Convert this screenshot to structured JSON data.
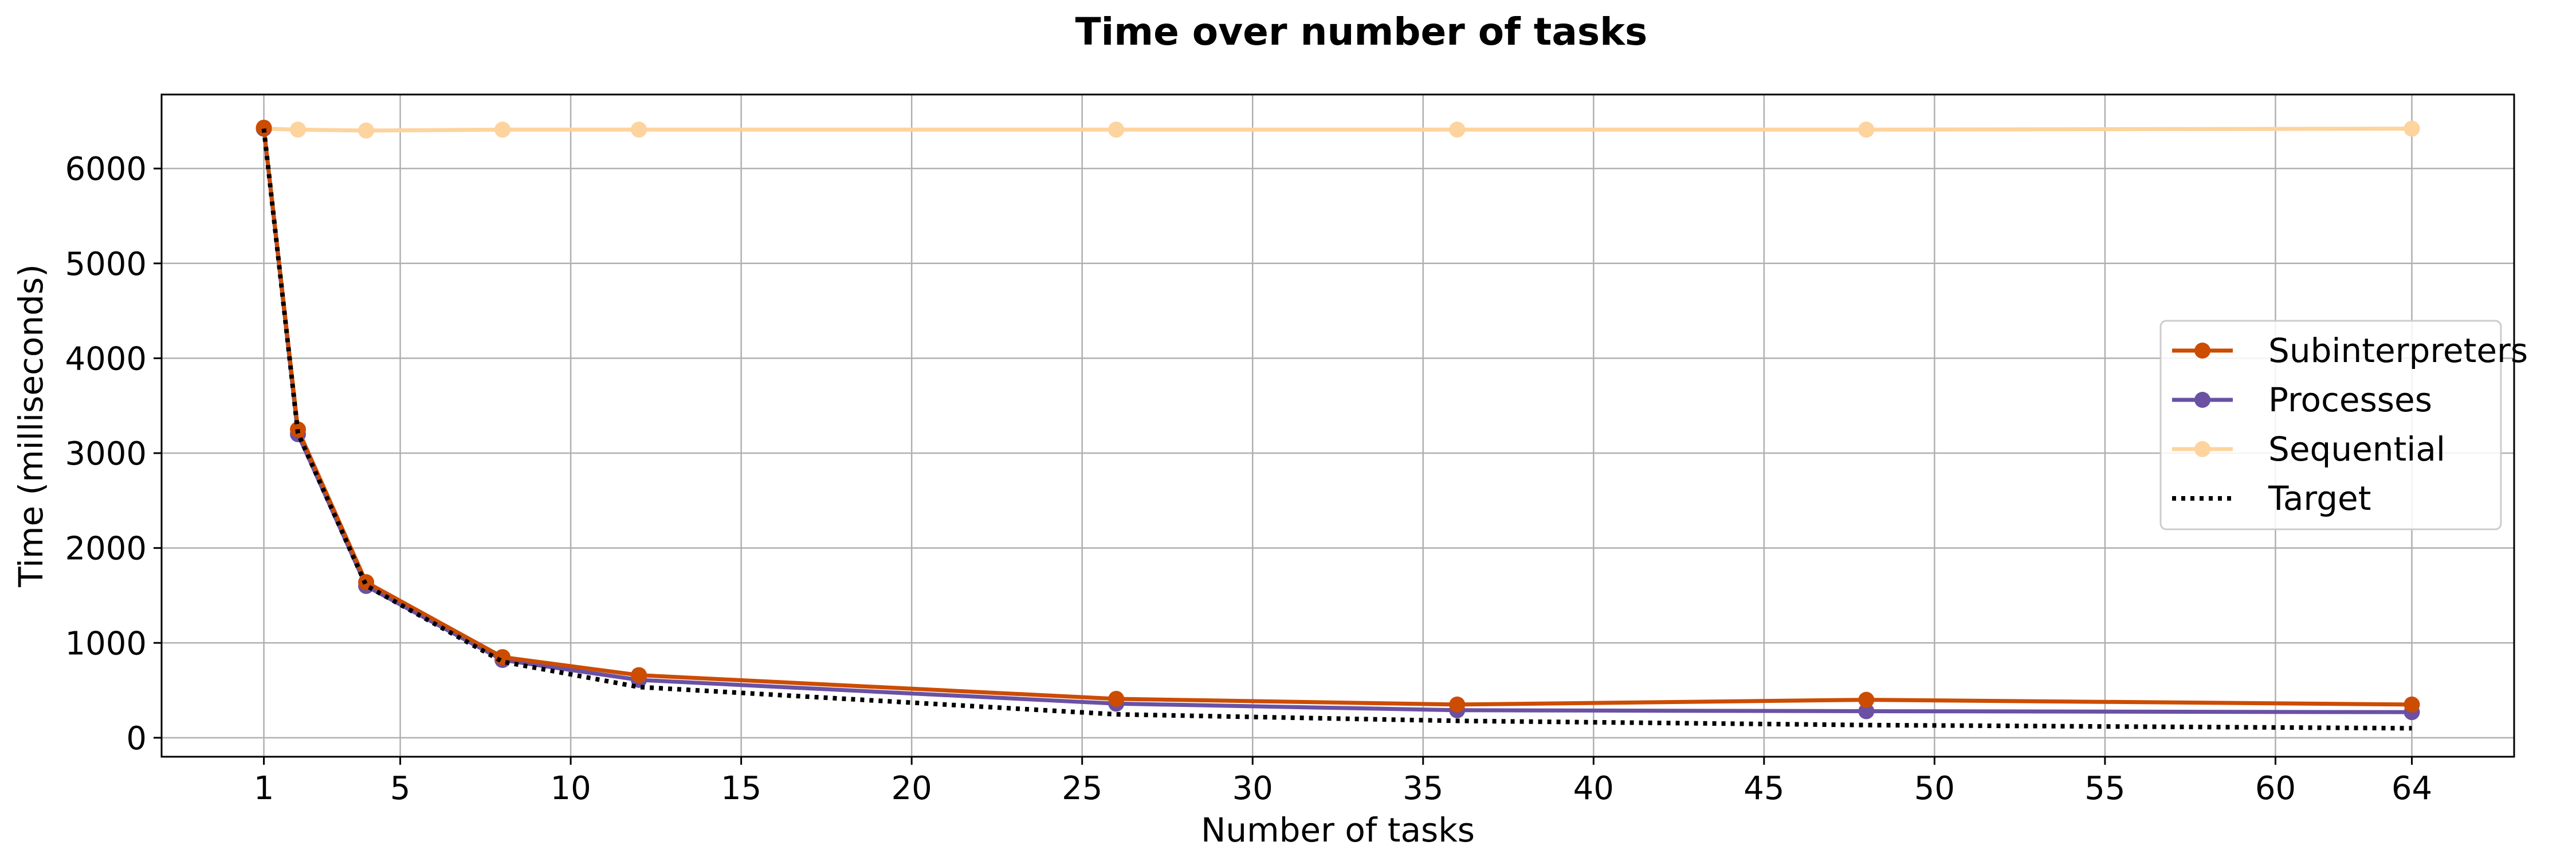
{
  "chart_data": {
    "type": "line",
    "title": "Time over number of tasks",
    "xlabel": "Number of tasks",
    "ylabel": "Time (milliseconds)",
    "xlim": [
      -2,
      67
    ],
    "ylim": [
      -200,
      6780
    ],
    "xticks": [
      1,
      5,
      10,
      15,
      20,
      25,
      30,
      35,
      40,
      45,
      50,
      55,
      60,
      64
    ],
    "yticks": [
      0,
      1000,
      2000,
      3000,
      4000,
      5000,
      6000
    ],
    "grid": true,
    "legend_position": "right",
    "series": [
      {
        "name": "Subinterpreters",
        "color": "#cc4c02",
        "style": "solid",
        "marker": true,
        "x": [
          1,
          2,
          4,
          8,
          12,
          26,
          36,
          48,
          64
        ],
        "y": [
          6430,
          3250,
          1640,
          850,
          660,
          410,
          350,
          400,
          350
        ]
      },
      {
        "name": "Processes",
        "color": "#6a51a3",
        "style": "solid",
        "marker": true,
        "x": [
          1,
          2,
          4,
          8,
          12,
          26,
          36,
          48,
          64
        ],
        "y": [
          6420,
          3200,
          1600,
          820,
          610,
          360,
          290,
          280,
          270
        ]
      },
      {
        "name": "Sequential",
        "color": "#fdd49e",
        "style": "solid",
        "marker": true,
        "x": [
          1,
          2,
          4,
          8,
          12,
          26,
          36,
          48,
          64
        ],
        "y": [
          6420,
          6410,
          6400,
          6410,
          6410,
          6410,
          6410,
          6410,
          6420
        ]
      },
      {
        "name": "Target",
        "color": "#000000",
        "style": "dotted",
        "marker": false,
        "x": [
          1,
          2,
          4,
          8,
          12,
          26,
          36,
          48,
          64
        ],
        "y": [
          6420,
          3210,
          1605,
          802,
          535,
          247,
          178,
          134,
          100
        ]
      }
    ]
  }
}
